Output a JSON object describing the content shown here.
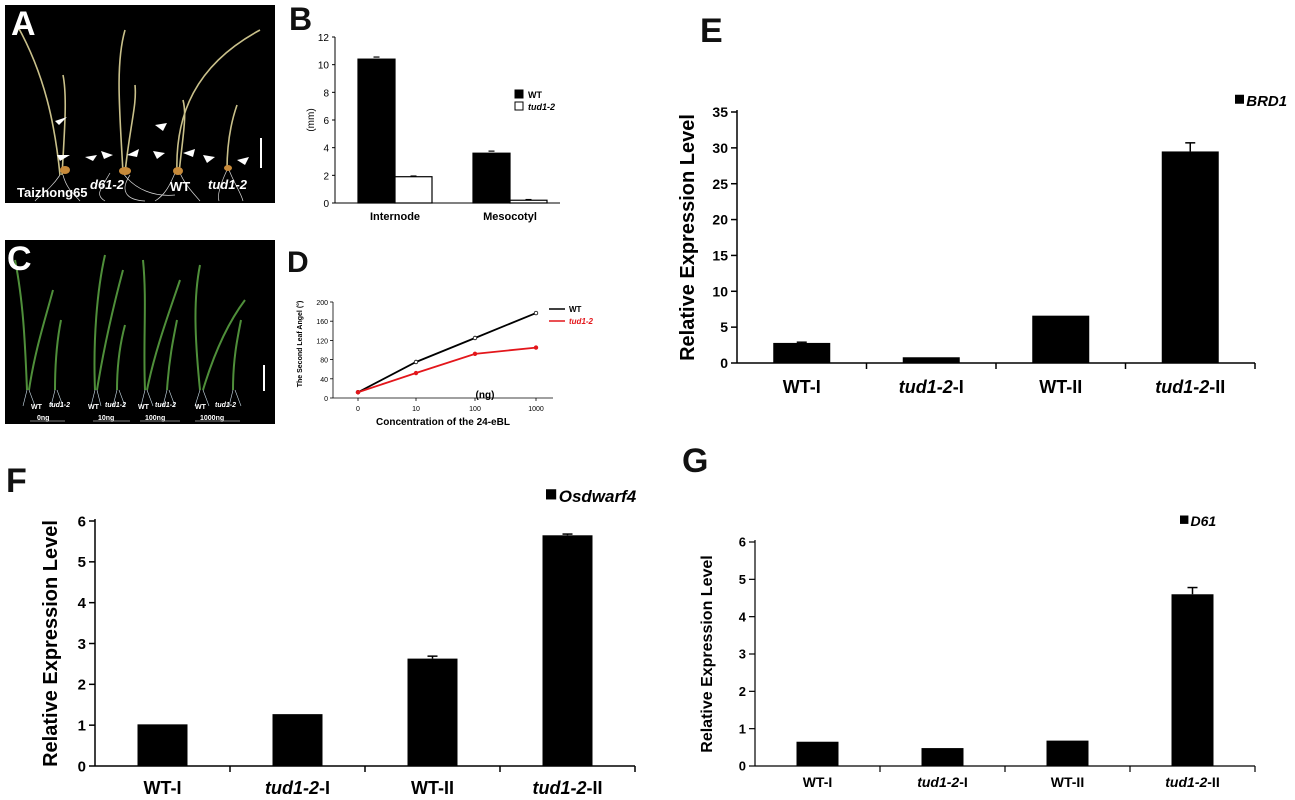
{
  "panels": {
    "A": {
      "letter": "A",
      "labels": [
        "Taizhong65",
        "d61-2",
        "WT",
        "tud1-2"
      ]
    },
    "C": {
      "letter": "C",
      "geno_labels": [
        "WT",
        "tud1-2",
        "WT",
        "tud1-2",
        "WT",
        "tud1-2",
        "WT",
        "tud1-2"
      ],
      "dose_labels": [
        "0ng",
        "10ng",
        "100ng",
        "1000ng"
      ]
    }
  },
  "colors": {
    "black": "#000000",
    "red": "#e3161b",
    "white": "#ffffff"
  },
  "chart_data": [
    {
      "panel": "B",
      "letter": "B",
      "type": "bar",
      "categories": [
        "Internode",
        "Mesocotyl"
      ],
      "series": [
        {
          "name": "WT",
          "values": [
            10.4,
            3.6
          ],
          "errors": [
            0.15,
            0.15
          ],
          "fill": "#000000"
        },
        {
          "name": "tud1-2",
          "values": [
            1.9,
            0.2
          ],
          "errors": [
            0.05,
            0.05
          ],
          "fill": "#ffffff"
        }
      ],
      "ylabel": "(mm)",
      "ylim": [
        0,
        12
      ],
      "yticks": [
        "0",
        "2",
        "4",
        "6",
        "8",
        "10",
        "12"
      ],
      "legend_position": "right"
    },
    {
      "panel": "D",
      "letter": "D",
      "type": "line",
      "categories": [
        "0",
        "10",
        "100",
        "1000"
      ],
      "series": [
        {
          "name": "WT",
          "values": [
            12,
            75,
            125,
            177
          ],
          "color": "#000000"
        },
        {
          "name": "tud1-2",
          "values": [
            12,
            52,
            92,
            105
          ],
          "color": "#e3161b"
        }
      ],
      "xlabel": "Concentration of the 24-eBL",
      "x_unit": "(ng)",
      "ylabel": "The Second Leaf Angel (°)",
      "ylim": [
        0,
        200
      ],
      "yticks": [
        "0",
        "40",
        "80",
        "120",
        "160",
        "200"
      ],
      "legend_position": "top-right"
    },
    {
      "panel": "E",
      "letter": "E",
      "type": "bar",
      "categories": [
        "WT-I",
        "tud1-2-I",
        "WT-II",
        "tud1-2-II"
      ],
      "italic_prefix": [
        null,
        "tud1-2",
        null,
        "tud1-2"
      ],
      "suffix": [
        "WT-I",
        "-I",
        "WT-II",
        "-II"
      ],
      "values": [
        2.8,
        0.8,
        6.6,
        29.5
      ],
      "errors": [
        0.1,
        0,
        0,
        1.2
      ],
      "legend": "BRD1",
      "ylabel": "Relative Expression Level",
      "ylim": [
        0,
        35
      ],
      "yticks": [
        "0",
        "5",
        "10",
        "15",
        "20",
        "25",
        "30",
        "35"
      ],
      "legend_position": "top-right"
    },
    {
      "panel": "F",
      "letter": "F",
      "type": "bar",
      "categories": [
        "WT-I",
        "tud1-2-I",
        "WT-II",
        "tud1-2-II"
      ],
      "italic_prefix": [
        null,
        "tud1-2",
        null,
        "tud1-2"
      ],
      "suffix": [
        "WT-I",
        "-I",
        "WT-II",
        "-II"
      ],
      "values": [
        1.02,
        1.27,
        2.63,
        5.65
      ],
      "errors": [
        0,
        0,
        0.06,
        0.03
      ],
      "legend": "Osdwarf4",
      "ylabel": "Relative Expression Level",
      "ylim": [
        0,
        6
      ],
      "yticks": [
        "0",
        "1",
        "2",
        "3",
        "4",
        "5",
        "6"
      ],
      "legend_position": "top-right"
    },
    {
      "panel": "G",
      "letter": "G",
      "type": "bar",
      "categories": [
        "WT-I",
        "tud1-2-I",
        "WT-II",
        "tud1-2-II"
      ],
      "italic_prefix": [
        null,
        "tud1-2",
        null,
        "tud1-2"
      ],
      "suffix": [
        "WT-I",
        "-I",
        "WT-II",
        "-II"
      ],
      "values": [
        0.65,
        0.48,
        0.68,
        4.6
      ],
      "errors": [
        0,
        0,
        0,
        0.18
      ],
      "legend": "D61",
      "ylabel": "Relative Expression Level",
      "ylim": [
        0,
        6
      ],
      "yticks": [
        "0",
        "1",
        "2",
        "3",
        "4",
        "5",
        "6"
      ],
      "legend_position": "top-right"
    }
  ]
}
